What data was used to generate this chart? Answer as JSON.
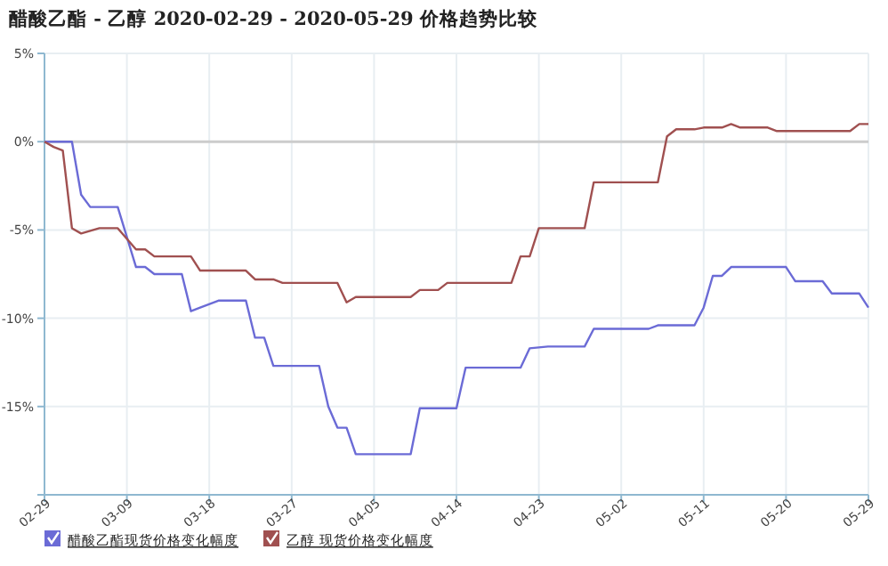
{
  "chart_data": {
    "type": "line",
    "title": "醋酸乙酯 - 乙醇 2020-02-29 - 2020-05-29 价格趋势比较",
    "xlim": [
      "2020-02-29",
      "2020-05-29"
    ],
    "xticks": [
      {
        "value": "2020-02-29",
        "label": "02-29"
      },
      {
        "value": "2020-03-09",
        "label": "03-09"
      },
      {
        "value": "2020-03-18",
        "label": "03-18"
      },
      {
        "value": "2020-03-27",
        "label": "03-27"
      },
      {
        "value": "2020-04-05",
        "label": "04-05"
      },
      {
        "value": "2020-04-14",
        "label": "04-14"
      },
      {
        "value": "2020-04-23",
        "label": "04-23"
      },
      {
        "value": "2020-05-02",
        "label": "05-02"
      },
      {
        "value": "2020-05-11",
        "label": "05-11"
      },
      {
        "value": "2020-05-20",
        "label": "05-20"
      },
      {
        "value": "2020-05-29",
        "label": "05-29"
      }
    ],
    "ylim": [
      -20,
      5
    ],
    "yticks": [
      {
        "value": -20,
        "label": null
      },
      {
        "value": -15,
        "label": "-15%"
      },
      {
        "value": -10,
        "label": "-10%"
      },
      {
        "value": -5,
        "label": "-5%"
      },
      {
        "value": 0,
        "label": "0%"
      },
      {
        "value": 5,
        "label": "5%"
      }
    ],
    "grid": true,
    "legend": "bottom left",
    "ref_lines": [
      {
        "axis": "y",
        "value": 0,
        "color": "#cccccc"
      }
    ],
    "series": [
      {
        "name": "醋酸乙酯现货价格变化幅度",
        "color": "#6b6bd6",
        "x": [
          "2020-02-29",
          "2020-03-03",
          "2020-03-04",
          "2020-03-05",
          "2020-03-08",
          "2020-03-10",
          "2020-03-11",
          "2020-03-12",
          "2020-03-15",
          "2020-03-16",
          "2020-03-17",
          "2020-03-19",
          "2020-03-22",
          "2020-03-23",
          "2020-03-24",
          "2020-03-25",
          "2020-03-30",
          "2020-03-31",
          "2020-04-01",
          "2020-04-02",
          "2020-04-03",
          "2020-04-09",
          "2020-04-10",
          "2020-04-14",
          "2020-04-15",
          "2020-04-21",
          "2020-04-22",
          "2020-04-24",
          "2020-04-28",
          "2020-04-29",
          "2020-05-05",
          "2020-05-06",
          "2020-05-10",
          "2020-05-11",
          "2020-05-12",
          "2020-05-13",
          "2020-05-14",
          "2020-05-20",
          "2020-05-21",
          "2020-05-24",
          "2020-05-25",
          "2020-05-28",
          "2020-05-29"
        ],
        "values": [
          0,
          0,
          -3.0,
          -3.7,
          -3.7,
          -7.1,
          -7.1,
          -7.5,
          -7.5,
          -9.6,
          -9.4,
          -9.0,
          -9.0,
          -11.1,
          -11.1,
          -12.7,
          -12.7,
          -15.0,
          -16.2,
          -16.2,
          -17.7,
          -17.7,
          -15.1,
          -15.1,
          -12.8,
          -12.8,
          -11.7,
          -11.6,
          -11.6,
          -10.6,
          -10.6,
          -10.4,
          -10.4,
          -9.4,
          -7.6,
          -7.6,
          -7.1,
          -7.1,
          -7.9,
          -7.9,
          -8.6,
          -8.6,
          -9.4
        ]
      },
      {
        "name": "乙醇 现货价格变化幅度",
        "color": "#a05050",
        "x": [
          "2020-02-29",
          "2020-03-01",
          "2020-03-02",
          "2020-03-03",
          "2020-03-04",
          "2020-03-06",
          "2020-03-08",
          "2020-03-10",
          "2020-03-11",
          "2020-03-12",
          "2020-03-16",
          "2020-03-17",
          "2020-03-22",
          "2020-03-23",
          "2020-03-25",
          "2020-03-26",
          "2020-04-01",
          "2020-04-02",
          "2020-04-03",
          "2020-04-09",
          "2020-04-10",
          "2020-04-12",
          "2020-04-13",
          "2020-04-20",
          "2020-04-21",
          "2020-04-22",
          "2020-04-23",
          "2020-04-28",
          "2020-04-29",
          "2020-05-06",
          "2020-05-07",
          "2020-05-08",
          "2020-05-10",
          "2020-05-11",
          "2020-05-13",
          "2020-05-14",
          "2020-05-15",
          "2020-05-18",
          "2020-05-19",
          "2020-05-27",
          "2020-05-28",
          "2020-05-29"
        ],
        "values": [
          0,
          -0.3,
          -0.5,
          -4.9,
          -5.2,
          -4.9,
          -4.9,
          -6.1,
          -6.1,
          -6.5,
          -6.5,
          -7.3,
          -7.3,
          -7.8,
          -7.8,
          -8.0,
          -8.0,
          -9.1,
          -8.8,
          -8.8,
          -8.4,
          -8.4,
          -8.0,
          -8.0,
          -6.5,
          -6.5,
          -4.9,
          -4.9,
          -2.3,
          -2.3,
          0.3,
          0.7,
          0.7,
          0.8,
          0.8,
          1.0,
          0.8,
          0.8,
          0.6,
          0.6,
          1.0,
          1.0
        ]
      }
    ]
  }
}
